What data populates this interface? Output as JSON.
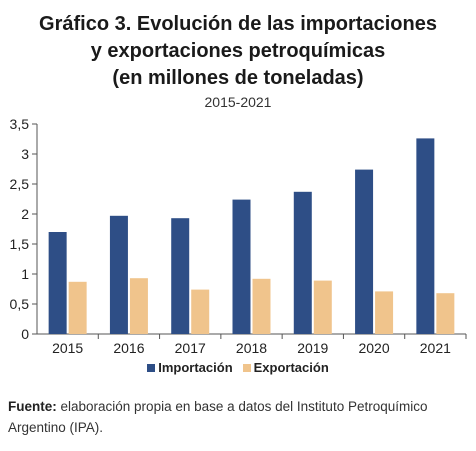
{
  "title_lines": [
    "Gráfico 3. Evolución de las importaciones",
    "y exportaciones petroquímicas",
    "(en millones de toneladas)"
  ],
  "subtitle": "2015-2021",
  "source_label": "Fuente:",
  "source_text": " elaboración propia en base a datos del Instituto Petroquímico Argentino (IPA).",
  "chart_data": {
    "type": "bar",
    "categories": [
      "2015",
      "2016",
      "2017",
      "2018",
      "2019",
      "2020",
      "2021"
    ],
    "series": [
      {
        "name": "Importación",
        "color": "#2e4e86",
        "values": [
          1.7,
          1.97,
          1.93,
          2.24,
          2.37,
          2.74,
          3.26
        ]
      },
      {
        "name": "Exportación",
        "color": "#f0c48c",
        "values": [
          0.87,
          0.93,
          0.74,
          0.92,
          0.89,
          0.71,
          0.68
        ]
      }
    ],
    "ylim": [
      0,
      3.5
    ],
    "yticks": [
      "0",
      "0,5",
      "1",
      "1,5",
      "2",
      "2,5",
      "3",
      "3,5"
    ],
    "grid": false,
    "legend_position": "bottom"
  }
}
